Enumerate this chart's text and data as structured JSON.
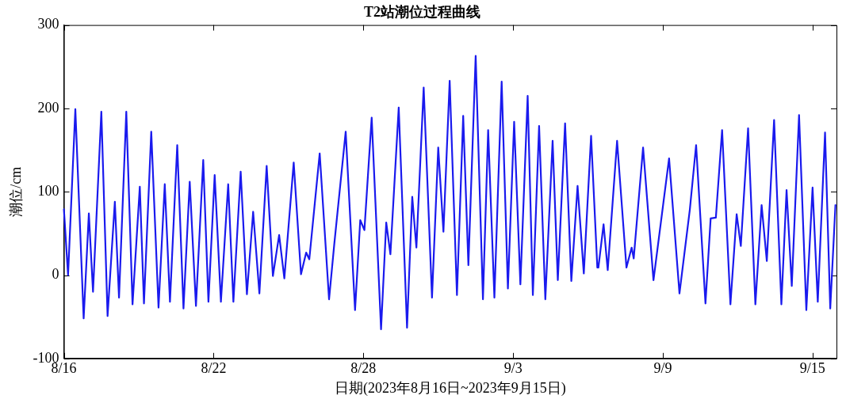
{
  "chart_data": {
    "type": "line",
    "title": "T2站潮位过程曲线",
    "xlabel": "日期(2023年8月16日~2023年9月15日)",
    "ylabel": "潮位/cm",
    "xlim": [
      "2023-08-16",
      "2023-09-15T23:00"
    ],
    "xticks": [
      {
        "value": "2023-08-16",
        "label": "8/16"
      },
      {
        "value": "2023-08-22",
        "label": "8/22"
      },
      {
        "value": "2023-08-28",
        "label": "8/28"
      },
      {
        "value": "2023-09-03",
        "label": "9/3"
      },
      {
        "value": "2023-09-09",
        "label": "9/9"
      },
      {
        "value": "2023-09-15",
        "label": "9/15"
      }
    ],
    "ylim": [
      -100,
      300
    ],
    "yticks": [
      -100,
      0,
      100,
      200,
      300
    ],
    "grid": false,
    "legend": false,
    "marker": "none",
    "line_style": "solid",
    "series": [
      {
        "color": "#1a1aee",
        "x": [
          "2023-08-16",
          "2023-08-16T04:00",
          "2023-08-16T11:00",
          "2023-08-16T19:00",
          "2023-08-17T00:00",
          "2023-08-17T04:00",
          "2023-08-17T12:00",
          "2023-08-17T18:00",
          "2023-08-18T01:00",
          "2023-08-18T05:00",
          "2023-08-18T12:00",
          "2023-08-18T18:00",
          "2023-08-19T01:00",
          "2023-08-19T05:00",
          "2023-08-19T12:00",
          "2023-08-19T19:00",
          "2023-08-20T01:00",
          "2023-08-20T06:00",
          "2023-08-20T13:00",
          "2023-08-20T19:00",
          "2023-08-21T01:00",
          "2023-08-21T07:00",
          "2023-08-21T14:00",
          "2023-08-21T19:00",
          "2023-08-22T01:00",
          "2023-08-22T07:00",
          "2023-08-22T14:00",
          "2023-08-22T19:00",
          "2023-08-23T02:00",
          "2023-08-23T08:00",
          "2023-08-23T14:00",
          "2023-08-23T20:00",
          "2023-08-24T03:00",
          "2023-08-24T09:00",
          "2023-08-24T15:00",
          "2023-08-24T20:00",
          "2023-08-25T05:00",
          "2023-08-25T12:00",
          "2023-08-25T17:00",
          "2023-08-25T20:00",
          "2023-08-26T06:00",
          "2023-08-26T15:00",
          "2023-08-26T20:00",
          "2023-08-27T07:00",
          "2023-08-27T16:00",
          "2023-08-27T21:00",
          "2023-08-28T01:00",
          "2023-08-28T08:00",
          "2023-08-28T17:00",
          "2023-08-28T22:00",
          "2023-08-29T02:00",
          "2023-08-29T10:00",
          "2023-08-29T18:00",
          "2023-08-29T23:00",
          "2023-08-30T03:00",
          "2023-08-30T10:00",
          "2023-08-30T18:00",
          "2023-08-31T00:00",
          "2023-08-31T05:00",
          "2023-08-31T11:00",
          "2023-08-31T18:00",
          "2023-09-01T00:00",
          "2023-09-01T05:00",
          "2023-09-01T12:00",
          "2023-09-01T19:00",
          "2023-09-02T00:00",
          "2023-09-02T06:00",
          "2023-09-02T13:00",
          "2023-09-02T19:00",
          "2023-09-03T01:00",
          "2023-09-03T07:00",
          "2023-09-03T14:00",
          "2023-09-03T19:00",
          "2023-09-04T01:00",
          "2023-09-04T07:00",
          "2023-09-04T14:00",
          "2023-09-04T19:00",
          "2023-09-05T02:00",
          "2023-09-05T08:00",
          "2023-09-05T14:00",
          "2023-09-05T20:00",
          "2023-09-06T03:00",
          "2023-09-06T09:00",
          "2023-09-06T10:00",
          "2023-09-06T15:00",
          "2023-09-06T19:00",
          "2023-09-07T04:00",
          "2023-09-07T13:00",
          "2023-09-07T18:00",
          "2023-09-07T20:00",
          "2023-09-08T05:00",
          "2023-09-08T15:00",
          "2023-09-09T06:00",
          "2023-09-09T16:00",
          "2023-09-10T02:00",
          "2023-09-10T08:00",
          "2023-09-10T17:00",
          "2023-09-10T22:00",
          "2023-09-11T03:00",
          "2023-09-11T09:00",
          "2023-09-11T17:00",
          "2023-09-11T23:00",
          "2023-09-12T03:00",
          "2023-09-12T10:00",
          "2023-09-12T17:00",
          "2023-09-12T23:00",
          "2023-09-13T04:00",
          "2023-09-13T11:00",
          "2023-09-13T18:00",
          "2023-09-13T23:00",
          "2023-09-14T04:00",
          "2023-09-14T11:00",
          "2023-09-14T18:00",
          "2023-09-15T00:00",
          "2023-09-15T05:00",
          "2023-09-15T12:00",
          "2023-09-15T17:00",
          "2023-09-15T22:00"
        ],
        "values": [
          79,
          0,
          199,
          -52,
          74,
          -20,
          196,
          -49,
          88,
          -27,
          196,
          -35,
          106,
          -34,
          172,
          -39,
          109,
          -32,
          156,
          -40,
          112,
          -37,
          138,
          -32,
          120,
          -32,
          109,
          -32,
          124,
          -23,
          76,
          -22,
          131,
          -1,
          48,
          -4,
          135,
          1,
          27,
          19,
          146,
          -29,
          37,
          172,
          -42,
          66,
          54,
          189,
          -65,
          63,
          25,
          201,
          -63,
          94,
          33,
          225,
          -27,
          153,
          52,
          233,
          -24,
          191,
          12,
          263,
          -29,
          174,
          -27,
          232,
          -16,
          184,
          -11,
          215,
          -24,
          179,
          -29,
          161,
          -6,
          182,
          -7,
          107,
          2,
          167,
          9,
          9,
          61,
          6,
          161,
          9,
          33,
          20,
          153,
          -6,
          140,
          -22,
          79,
          156,
          -34,
          68,
          69,
          174,
          -35,
          73,
          35,
          176,
          -35,
          84,
          17,
          186,
          -35,
          102,
          -13,
          192,
          -42,
          105,
          -32,
          171,
          -40,
          84
        ]
      }
    ]
  }
}
